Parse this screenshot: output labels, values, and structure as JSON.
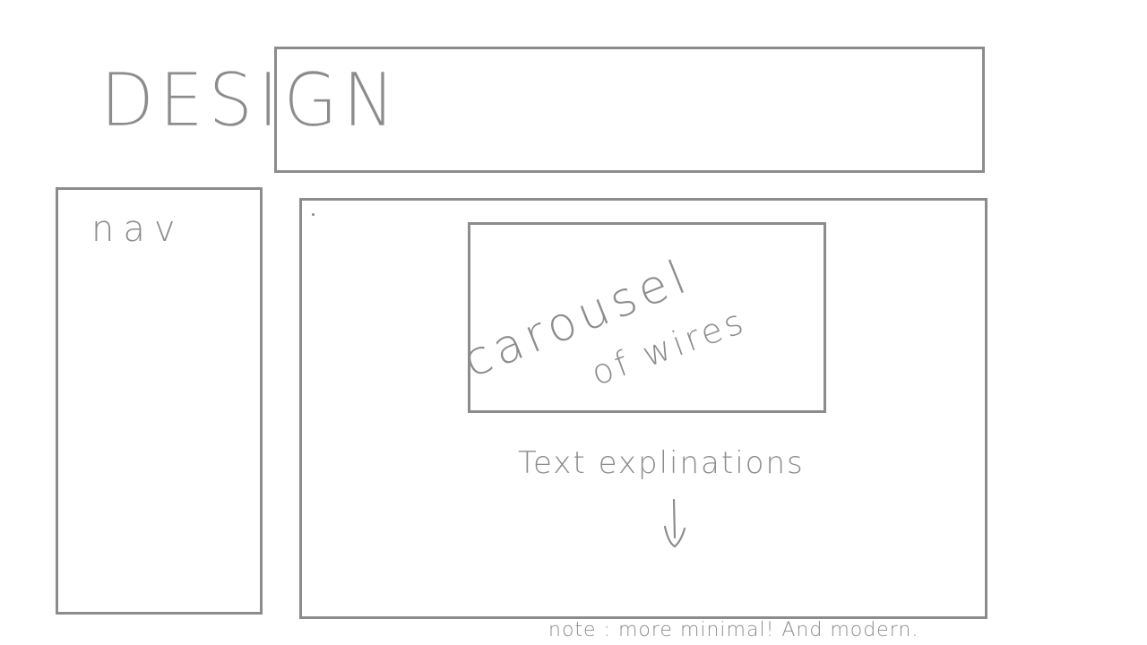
{
  "logo": {
    "text": "DESIGN"
  },
  "nav": {
    "label": "nav"
  },
  "carousel": {
    "line1": "carousel",
    "line2": "of wires"
  },
  "content": {
    "explanation_text": "Text explinations"
  },
  "note": {
    "text": "note : more minimal! And modern."
  },
  "icons": {
    "arrow": "arrow-down-icon"
  },
  "colors": {
    "stroke": "#8c8c8c",
    "background": "#ffffff"
  }
}
